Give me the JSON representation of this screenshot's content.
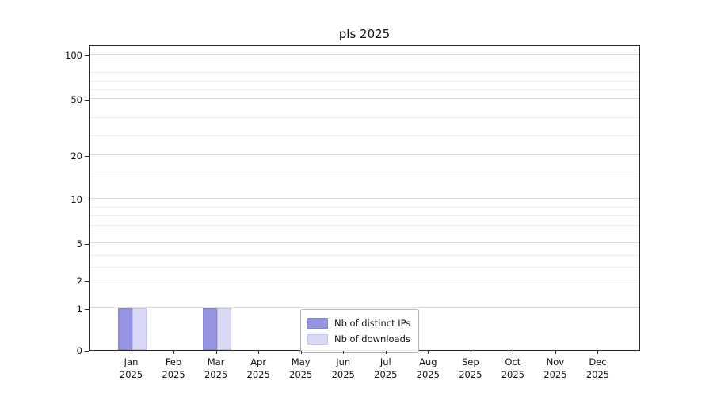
{
  "chart_data": {
    "type": "bar",
    "title": "pls 2025",
    "categories": [
      "Jan 2025",
      "Feb 2025",
      "Mar 2025",
      "Apr 2025",
      "May 2025",
      "Jun 2025",
      "Jul 2025",
      "Aug 2025",
      "Sep 2025",
      "Oct 2025",
      "Nov 2025",
      "Dec 2025"
    ],
    "series": [
      {
        "name": "Nb of distinct IPs",
        "color": "#9593e2",
        "edge_color": "#8583d6",
        "values": [
          1,
          0,
          1,
          0,
          0,
          0,
          0,
          0,
          0,
          0,
          0,
          0
        ]
      },
      {
        "name": "Nb of downloads",
        "color": "#d9d8f6",
        "edge_color": "#c3c2ea",
        "values": [
          1,
          0,
          1,
          0,
          0,
          0,
          0,
          0,
          0,
          0,
          0,
          0
        ]
      }
    ],
    "y_axis": {
      "ticks": [
        0,
        1,
        2,
        5,
        10,
        20,
        50,
        100
      ],
      "minor_gridlines": [
        3,
        4,
        6,
        7,
        8,
        9,
        15,
        30,
        40,
        60,
        70,
        80,
        90
      ],
      "scale": "log-like",
      "range": [
        0,
        110
      ]
    },
    "xlabel": "",
    "ylabel": "",
    "grid": true,
    "legend_position": "bottom-center"
  }
}
